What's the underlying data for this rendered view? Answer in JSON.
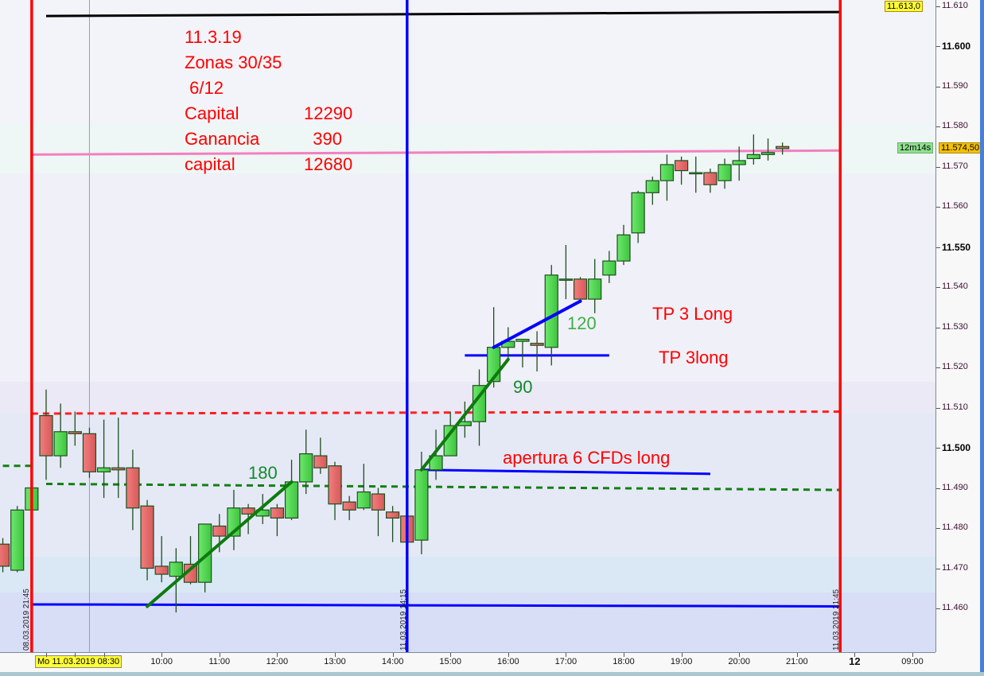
{
  "chart_data": {
    "type": "candlestick",
    "price_axis": {
      "ylim": [
        11445,
        11615
      ],
      "ticks": [
        "11.610",
        "11.600",
        "11.590",
        "11.580",
        "11.570",
        "11.560",
        "11.550",
        "11.540",
        "11.530",
        "11.520",
        "11.510",
        "11.500",
        "11.490",
        "11.480",
        "11.470",
        "11.460"
      ],
      "bold_ticks": [
        "11.600",
        "11.550",
        "11.500"
      ]
    },
    "time_axis": {
      "ticks": [
        "10:00",
        "11:00",
        "12:00",
        "13:00",
        "14:00",
        "15:00",
        "16:00",
        "17:00",
        "18:00",
        "19:00",
        "20:00",
        "21:00",
        "12",
        "09:00"
      ],
      "highlight_label": "Mo 11.03.2019 08:30"
    },
    "current_price_label": "11.574,50",
    "countdown_label": "12m14s",
    "top_price_label": "11.613,0",
    "candle_columns": [
      "time",
      "open",
      "high",
      "low",
      "close"
    ],
    "candles": [
      [
        "08.03 21:15",
        11476,
        11477.5,
        11469,
        11470.5
      ],
      [
        "08.03 21:30",
        11469.5,
        11485.5,
        11469,
        11484.5
      ],
      [
        "08.03 21:45",
        11484.5,
        11490,
        11484.5,
        11490
      ],
      [
        "11.03 08:00",
        11508,
        11514.5,
        11492,
        11498
      ],
      [
        "11.03 08:15",
        11498,
        11511,
        11495,
        11504
      ],
      [
        "11.03 08:30",
        11504,
        11509,
        11500.5,
        11503.5
      ],
      [
        "11.03 08:45",
        11503.5,
        11505,
        11492.5,
        11494
      ],
      [
        "11.03 09:00",
        11494,
        11507,
        11487.5,
        11495
      ],
      [
        "11.03 09:15",
        11495,
        11507.5,
        11487.5,
        11494.5
      ],
      [
        "11.03 09:30",
        11495,
        11499.5,
        11479.5,
        11485
      ],
      [
        "11.03 09:45",
        11485.5,
        11487,
        11467,
        11470
      ],
      [
        "11.03 10:00",
        11470.5,
        11478,
        11466.5,
        11468.5
      ],
      [
        "11.03 10:15",
        11468,
        11475,
        11459,
        11471.5
      ],
      [
        "11.03 10:30",
        11471,
        11478,
        11466,
        11466.5
      ],
      [
        "11.03 10:45",
        11466.5,
        11481,
        11464,
        11481
      ],
      [
        "11.03 11:00",
        11480.5,
        11483.5,
        11474,
        11478
      ],
      [
        "11.03 11:15",
        11478,
        11489.5,
        11474.5,
        11485
      ],
      [
        "11.03 11:30",
        11485,
        11486,
        11478.5,
        11483.5
      ],
      [
        "11.03 11:45",
        11483,
        11488.5,
        11481,
        11484.5
      ],
      [
        "11.03 12:00",
        11485,
        11486,
        11478,
        11482.5
      ],
      [
        "11.03 12:15",
        11482.5,
        11497,
        11482,
        11491.5
      ],
      [
        "11.03 12:30",
        11491.5,
        11504.5,
        11488.5,
        11498.5
      ],
      [
        "11.03 12:45",
        11498,
        11502.5,
        11493.5,
        11495
      ],
      [
        "11.03 13:00",
        11495.5,
        11496.5,
        11482,
        11486
      ],
      [
        "11.03 13:15",
        11486.5,
        11488,
        11482,
        11484.5
      ],
      [
        "11.03 13:30",
        11485,
        11496,
        11484.5,
        11489
      ],
      [
        "11.03 13:45",
        11488.5,
        11490,
        11478,
        11484.5
      ],
      [
        "11.03 14:00",
        11484,
        11485.5,
        11476.5,
        11482.5
      ],
      [
        "11.03 14:15",
        11483,
        11483,
        11476.5,
        11476.5
      ],
      [
        "11.03 14:30",
        11477,
        11499,
        11473.5,
        11494.5
      ],
      [
        "11.03 14:45",
        11494.5,
        11504.5,
        11492,
        11498
      ],
      [
        "11.03 15:00",
        11498,
        11509,
        11498,
        11505.5
      ],
      [
        "11.03 15:15",
        11505.5,
        11511.5,
        11502.5,
        11506.5
      ],
      [
        "11.03 15:30",
        11506.5,
        11519.5,
        11500.5,
        11515.5
      ],
      [
        "11.03 15:45",
        11516.5,
        11535,
        11515,
        11525
      ],
      [
        "11.03 16:00",
        11525,
        11530,
        11522,
        11526.5
      ],
      [
        "11.03 16:15",
        11526.5,
        11527,
        11520,
        11527
      ],
      [
        "11.03 16:30",
        11526,
        11529,
        11519,
        11525.5
      ],
      [
        "11.03 16:45",
        11525,
        11545.5,
        11520.5,
        11543
      ],
      [
        "11.03 17:00",
        11542,
        11550.5,
        11537,
        11542
      ],
      [
        "11.03 17:15",
        11542,
        11542.5,
        11537,
        11537
      ],
      [
        "11.03 17:30",
        11537,
        11547,
        11533.5,
        11542
      ],
      [
        "11.03 17:45",
        11543,
        11549,
        11541,
        11546.5
      ],
      [
        "11.03 18:00",
        11546.5,
        11555.5,
        11545.5,
        11553
      ],
      [
        "11.03 18:15",
        11553.5,
        11564,
        11551,
        11563.5
      ],
      [
        "11.03 18:30",
        11563.5,
        11567.5,
        11560.5,
        11566.5
      ],
      [
        "11.03 18:45",
        11566.5,
        11573,
        11561.5,
        11570.5
      ],
      [
        "11.03 19:00",
        11571.5,
        11572.5,
        11565.5,
        11569
      ],
      [
        "11.03 19:15",
        11568.5,
        11572.5,
        11563.5,
        11568.5
      ],
      [
        "11.03 19:30",
        11568.5,
        11569.5,
        11563.5,
        11565.5
      ],
      [
        "11.03 19:45",
        11566.5,
        11572,
        11564.5,
        11570.5
      ],
      [
        "11.03 20:00",
        11570.5,
        11575,
        11566.5,
        11571.5
      ],
      [
        "11.03 20:15",
        11572,
        11578,
        11570.5,
        11573
      ],
      [
        "11.03 20:30",
        11573,
        11577,
        11571.5,
        11573.5
      ],
      [
        "11.03 20:45",
        11575,
        11576,
        11573,
        11574.5
      ]
    ],
    "vertical_lines": [
      {
        "time": "08.03 21:45",
        "color": "#ff0000",
        "label": "08.03.2019 21:45"
      },
      {
        "time": "11.03 14:15",
        "color": "#0000ff",
        "label": "11.03.2019 14:15"
      },
      {
        "time": "11.03 21:45",
        "color": "#ff0000",
        "label": "11.03.2019 21:45"
      }
    ],
    "horizontal_lines": [
      {
        "name": "black-level",
        "color": "#000000",
        "style": "solid",
        "from": [
          "11.03 08:00",
          11607.5
        ],
        "to": [
          "11.03 21:45",
          11608.5
        ]
      },
      {
        "name": "pink-level",
        "color": "#f47fbf",
        "style": "solid",
        "from": [
          "08.03 21:45",
          11573
        ],
        "to": [
          "11.03 21:45",
          11574
        ]
      },
      {
        "name": "red-dotted-level",
        "color": "#ff2020",
        "style": "dotted",
        "from": [
          "08.03 21:45",
          11508.5
        ],
        "to": [
          "11.03 21:45",
          11509
        ]
      },
      {
        "name": "green-dotted-level",
        "color": "#128012",
        "style": "dotted",
        "from": [
          "11.03 08:00",
          11491
        ],
        "to": [
          "11.03 21:45",
          11489.5
        ]
      },
      {
        "name": "green-dotted-prev",
        "color": "#128012",
        "style": "dotted",
        "from": [
          "08.03 21:15",
          11495.5
        ],
        "to": [
          "08.03 21:45",
          11495.5
        ]
      },
      {
        "name": "blue-bottom-level",
        "color": "#0000ff",
        "style": "solid",
        "from": [
          "08.03 21:45",
          11461
        ],
        "to": [
          "11.03 21:45",
          11460.5
        ]
      },
      {
        "name": "blue-entry-level",
        "color": "#0000ff",
        "style": "solid",
        "from": [
          "11.03 14:30",
          11494.5
        ],
        "to": [
          "11.03 19:30",
          11493.5
        ]
      },
      {
        "name": "blue-tp-level",
        "color": "#0000ff",
        "style": "solid",
        "from": [
          "11.03 15:15",
          11523
        ],
        "to": [
          "11.03 17:45",
          11523
        ]
      }
    ],
    "trend_lines": [
      {
        "name": "green-trend-180",
        "color": "#0e7a0e",
        "from": [
          "11.03 09:45",
          11460.5
        ],
        "to": [
          "11.03 12:15",
          11491.5
        ]
      },
      {
        "name": "green-trend-90",
        "color": "#0e7a0e",
        "from": [
          "11.03 14:30",
          11494.5
        ],
        "to": [
          "11.03 16:00",
          11522
        ]
      },
      {
        "name": "blue-trend-120",
        "color": "#0000ff",
        "from": [
          "11.03 15:45",
          11525
        ],
        "to": [
          "11.03 17:15",
          11536.5
        ]
      }
    ],
    "colors": {
      "bull": "#4fd64f",
      "bear": "#e86a6a",
      "outline": "#1e4d1e"
    }
  },
  "notes": {
    "date": "11.3.19",
    "zones": "Zonas 30/35",
    "ratio": " 6/12",
    "rows": [
      {
        "label": "Capital",
        "value": "12290"
      },
      {
        "label": "Ganancia",
        "value": "390"
      },
      {
        "label": "capital",
        "value": "12680"
      }
    ]
  },
  "annotations": {
    "gain_180": "180",
    "gain_90": "90",
    "gain_120": "120",
    "tp1": "TP 3 Long",
    "tp2": "TP 3long",
    "entry": "apertura 6 CFDs long"
  }
}
